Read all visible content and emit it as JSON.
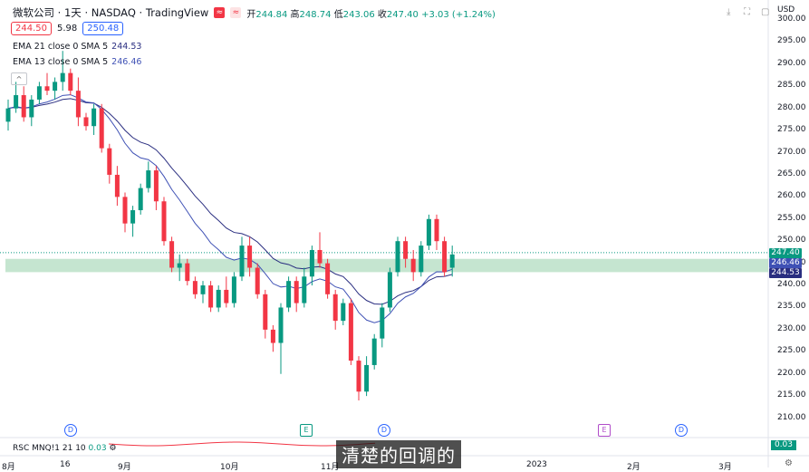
{
  "header": {
    "title": "微软公司 · 1天 · NASDAQ · TradingView",
    "open_label": "开",
    "open": "244.84",
    "high_label": "高",
    "high": "248.74",
    "low_label": "低",
    "low": "243.06",
    "close_label": "收",
    "close": "247.40",
    "change": "+3.03 (+1.24%)"
  },
  "prices": {
    "bid": "244.50",
    "spread": "5.98",
    "ask": "250.48"
  },
  "indicators": [
    {
      "label": "EMA 21 close 0 SMA 5",
      "value": "244.53",
      "color": "#2a2e80"
    },
    {
      "label": "EMA 13 close 0 SMA 5",
      "value": "246.46",
      "color": "#3f51b5"
    }
  ],
  "axis": {
    "currency": "USD",
    "y_ticks": [
      "300.00",
      "295.00",
      "290.00",
      "285.00",
      "280.00",
      "275.00",
      "270.00",
      "265.00",
      "260.00",
      "255.00",
      "250.00",
      "245.00",
      "240.00",
      "235.00",
      "230.00",
      "225.00",
      "220.00",
      "215.00",
      "210.00"
    ],
    "x_ticks": [
      "8月",
      "16",
      "9月",
      "10月",
      "11月",
      "2023",
      "2月",
      "3月"
    ],
    "badges": {
      "close": "247.40",
      "ema13": "246.46",
      "ema21": "244.53"
    }
  },
  "events": [
    "D",
    "E",
    "D",
    "E",
    "D"
  ],
  "rsc": {
    "label": "RSC MNQ!1 21 10",
    "value": "0.03",
    "badge": "0.03"
  },
  "subtitle": "清楚的回调的",
  "colors": {
    "up": "#089981",
    "down": "#f23645",
    "zone": "#b7dfc4"
  },
  "chart_data": {
    "type": "candlestick",
    "ylim": [
      208,
      302
    ],
    "zone": [
      243,
      246
    ],
    "candles": [
      [
        277,
        282,
        275,
        280
      ],
      [
        280,
        286,
        279,
        283
      ],
      [
        283,
        285,
        277,
        278
      ],
      [
        278,
        283,
        276,
        282
      ],
      [
        282,
        286,
        281,
        285
      ],
      [
        285,
        288,
        283,
        284
      ],
      [
        284,
        287,
        282,
        286
      ],
      [
        286,
        293,
        284,
        288
      ],
      [
        288,
        289,
        283,
        284
      ],
      [
        284,
        287,
        276,
        278
      ],
      [
        278,
        279,
        275,
        276
      ],
      [
        276,
        281,
        274,
        280
      ],
      [
        280,
        281,
        270,
        271
      ],
      [
        271,
        272,
        263,
        265
      ],
      [
        265,
        267,
        258,
        260
      ],
      [
        260,
        261,
        252,
        254
      ],
      [
        254,
        258,
        251,
        257
      ],
      [
        257,
        263,
        256,
        262
      ],
      [
        262,
        268,
        261,
        266
      ],
      [
        266,
        267,
        257,
        259
      ],
      [
        259,
        260,
        249,
        250
      ],
      [
        250,
        251,
        243,
        244
      ],
      [
        244,
        247,
        241,
        245
      ],
      [
        245,
        246,
        240,
        241
      ],
      [
        241,
        242,
        237,
        238
      ],
      [
        238,
        241,
        236,
        240
      ],
      [
        240,
        241,
        234,
        235
      ],
      [
        235,
        240,
        234,
        239
      ],
      [
        239,
        242,
        235,
        236
      ],
      [
        236,
        243,
        235,
        242
      ],
      [
        242,
        251,
        241,
        249
      ],
      [
        249,
        251,
        242,
        244
      ],
      [
        244,
        245,
        237,
        238
      ],
      [
        238,
        239,
        228,
        230
      ],
      [
        230,
        231,
        225,
        227
      ],
      [
        227,
        236,
        220,
        235
      ],
      [
        235,
        242,
        234,
        241
      ],
      [
        241,
        242,
        234,
        236
      ],
      [
        236,
        244,
        235,
        242
      ],
      [
        242,
        249,
        240,
        248
      ],
      [
        248,
        252,
        244,
        245
      ],
      [
        245,
        246,
        237,
        238
      ],
      [
        238,
        239,
        230,
        232
      ],
      [
        232,
        237,
        231,
        236
      ],
      [
        236,
        237,
        222,
        223
      ],
      [
        223,
        224,
        214,
        216
      ],
      [
        216,
        224,
        215,
        222
      ],
      [
        222,
        229,
        221,
        228
      ],
      [
        228,
        236,
        226,
        235
      ],
      [
        235,
        244,
        234,
        243
      ],
      [
        243,
        251,
        242,
        250
      ],
      [
        250,
        251,
        244,
        246
      ],
      [
        246,
        248,
        241,
        243
      ],
      [
        243,
        250,
        242,
        249
      ],
      [
        249,
        256,
        248,
        255
      ],
      [
        255,
        256,
        248,
        250
      ],
      [
        250,
        251,
        242,
        243
      ],
      [
        244,
        249,
        242,
        247
      ]
    ]
  }
}
